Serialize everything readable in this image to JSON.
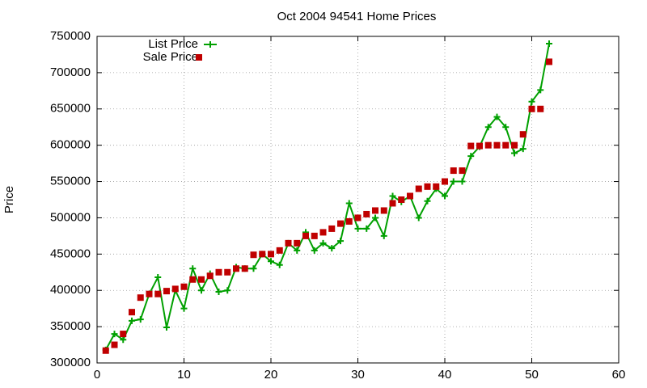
{
  "chart_data": {
    "type": "line",
    "title": "Oct 2004 94541 Home Prices",
    "y_label": "Price",
    "x": [
      1,
      2,
      3,
      4,
      5,
      6,
      7,
      8,
      9,
      10,
      11,
      12,
      13,
      14,
      15,
      16,
      17,
      18,
      19,
      20,
      21,
      22,
      23,
      24,
      25,
      26,
      27,
      28,
      29,
      30,
      31,
      32,
      33,
      34,
      35,
      36,
      37,
      38,
      39,
      40,
      41,
      42,
      43,
      44,
      45,
      46,
      47,
      48,
      49,
      50,
      51,
      52
    ],
    "series": [
      {
        "name": "List Price",
        "color": "#00a000",
        "line": true,
        "marker": "plus",
        "values": [
          318000,
          340000,
          332000,
          358000,
          360000,
          395000,
          418000,
          349000,
          400000,
          375000,
          430000,
          400000,
          423000,
          398000,
          400000,
          432000,
          430000,
          430000,
          450000,
          440000,
          435000,
          465000,
          455000,
          480000,
          455000,
          465000,
          458000,
          468000,
          520000,
          485000,
          485000,
          500000,
          475000,
          530000,
          522000,
          530000,
          500000,
          523000,
          540000,
          530000,
          550000,
          550000,
          585000,
          598000,
          625000,
          639000,
          625000,
          589000,
          595000,
          660000,
          676000,
          740000
        ]
      },
      {
        "name": "Sale Price",
        "color": "#c00000",
        "line": false,
        "marker": "square",
        "values": [
          317000,
          325000,
          340000,
          370000,
          390000,
          395000,
          395000,
          399000,
          402000,
          405000,
          415000,
          415000,
          420000,
          425000,
          425000,
          430000,
          430000,
          449000,
          450000,
          450000,
          455000,
          465000,
          465000,
          475000,
          475000,
          480000,
          485000,
          492000,
          495000,
          500000,
          505000,
          510000,
          510000,
          520000,
          525000,
          530000,
          540000,
          543000,
          543000,
          550000,
          565000,
          565000,
          599000,
          599000,
          600000,
          600000,
          600000,
          600000,
          615000,
          650000,
          650000,
          715000
        ]
      }
    ],
    "xlim": [
      0,
      60
    ],
    "xticks": [
      0,
      10,
      20,
      30,
      40,
      50,
      60
    ],
    "ylim": [
      300000,
      750000
    ],
    "yticks": [
      300000,
      350000,
      400000,
      450000,
      500000,
      550000,
      600000,
      650000,
      700000,
      750000
    ],
    "grid": true,
    "legend": "top-left"
  }
}
